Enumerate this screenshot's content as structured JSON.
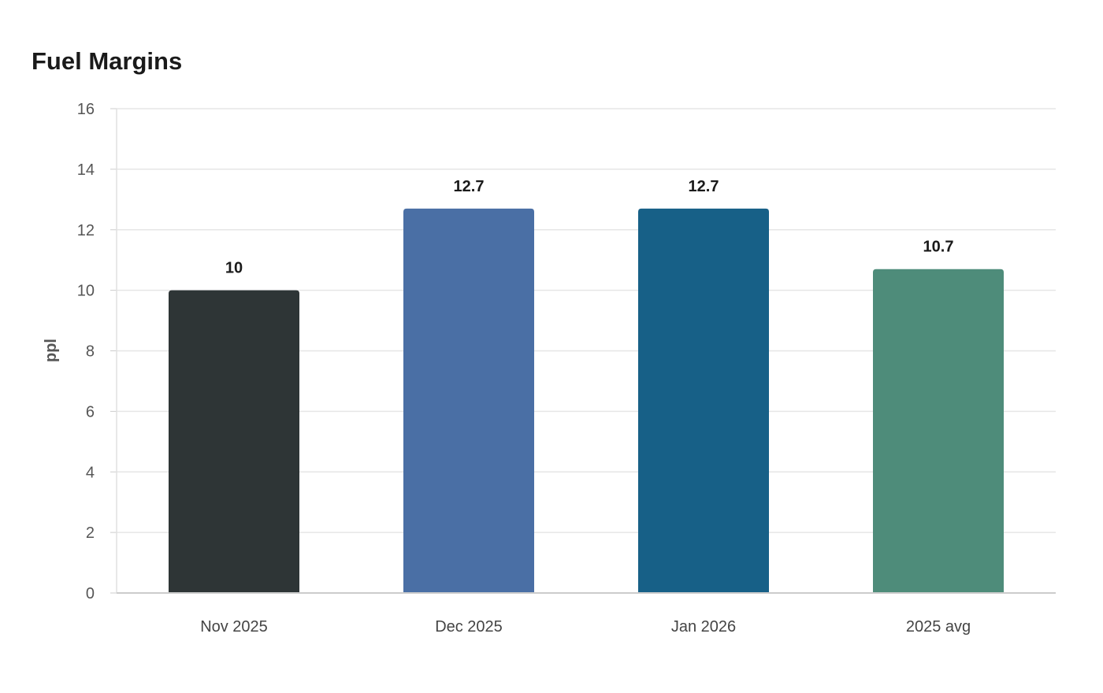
{
  "chart_data": {
    "type": "bar",
    "title": "Fuel Margins",
    "xlabel": "",
    "ylabel": "ppl",
    "ylim": [
      0,
      16
    ],
    "yticks": [
      0,
      2,
      4,
      6,
      8,
      10,
      12,
      14,
      16
    ],
    "grid": true,
    "categories": [
      "Nov 2025",
      "Dec 2025",
      "Jan 2026",
      "2025 avg"
    ],
    "values": [
      10,
      12.7,
      12.7,
      10.7
    ],
    "data_labels": [
      "10",
      "12.7",
      "12.7",
      "10.7"
    ],
    "colors": [
      "#2e3536",
      "#4a6fa5",
      "#176087",
      "#4e8c7a"
    ]
  }
}
